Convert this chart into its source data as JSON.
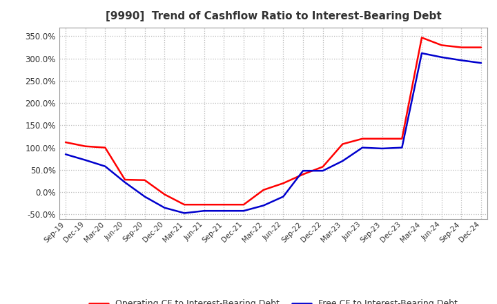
{
  "title": "[9990]  Trend of Cashflow Ratio to Interest-Bearing Debt",
  "x_labels": [
    "Sep-19",
    "Dec-19",
    "Mar-20",
    "Jun-20",
    "Sep-20",
    "Dec-20",
    "Mar-21",
    "Jun-21",
    "Sep-21",
    "Dec-21",
    "Mar-22",
    "Jun-22",
    "Sep-22",
    "Dec-22",
    "Mar-23",
    "Jun-23",
    "Sep-23",
    "Dec-23",
    "Mar-24",
    "Jun-24",
    "Sep-24",
    "Dec-24"
  ],
  "operating_cf": [
    112,
    103,
    100,
    28,
    27,
    -5,
    -28,
    -28,
    -28,
    -28,
    5,
    20,
    40,
    57,
    108,
    120,
    120,
    120,
    347,
    330,
    325,
    325
  ],
  "free_cf": [
    85,
    72,
    58,
    22,
    -10,
    -35,
    -47,
    -42,
    -42,
    -42,
    -30,
    -10,
    48,
    48,
    70,
    100,
    98,
    100,
    312,
    303,
    296,
    290
  ],
  "operating_color": "#FF0000",
  "free_color": "#0000CD",
  "ylim": [
    -60,
    370
  ],
  "yticks": [
    -50.0,
    0.0,
    50.0,
    100.0,
    150.0,
    200.0,
    250.0,
    300.0,
    350.0
  ],
  "background_color": "#ffffff",
  "grid_color": "#bbbbbb",
  "legend_op": "Operating CF to Interest-Bearing Debt",
  "legend_free": "Free CF to Interest-Bearing Debt",
  "title_color": "#333333",
  "tick_color": "#333333",
  "spine_color": "#999999"
}
